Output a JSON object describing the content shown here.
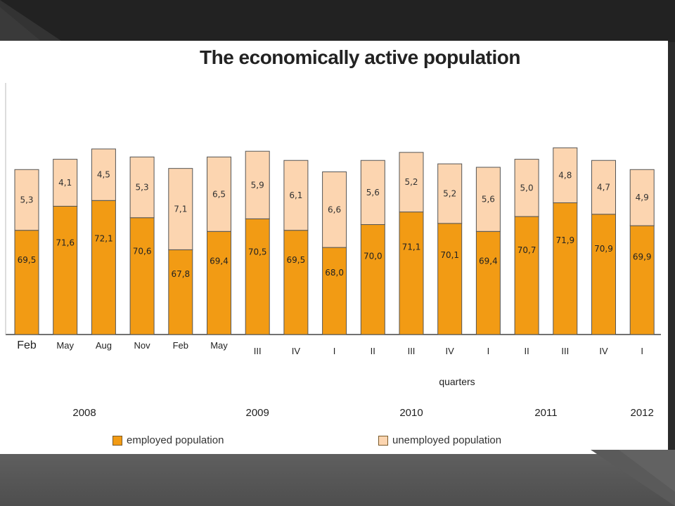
{
  "slide": {
    "title": "The economically active population"
  },
  "colors": {
    "employed": "#f29b14",
    "unemployed": "#fcd5b0",
    "bar_border": "#555555",
    "axis": "#444444"
  },
  "chart_data": {
    "type": "bar",
    "stacked": true,
    "title": "The economically active population",
    "categories": [
      "Feb",
      "May",
      "Aug",
      "Nov",
      "Feb",
      "May",
      "III",
      "IV",
      "I",
      "II",
      "III",
      "IV",
      "I",
      "II",
      "III",
      "IV",
      "I"
    ],
    "series": [
      {
        "name": "employed population",
        "values": [
          69.5,
          71.6,
          72.1,
          70.6,
          67.8,
          69.4,
          70.5,
          69.5,
          68.0,
          70.0,
          71.1,
          70.1,
          69.4,
          70.7,
          71.9,
          70.9,
          69.9
        ],
        "labels": [
          "69,5",
          "71,6",
          "72,1",
          "70,6",
          "67,8",
          "69,4",
          "70,5",
          "69,5",
          "68,0",
          "70,0",
          "71,1",
          "70,1",
          "69,4",
          "70,7",
          "71,9",
          "70,9",
          "69,9"
        ]
      },
      {
        "name": "unemployed population",
        "values": [
          5.3,
          4.1,
          4.5,
          5.3,
          7.1,
          6.5,
          5.9,
          6.1,
          6.6,
          5.6,
          5.2,
          5.2,
          5.6,
          5.0,
          4.8,
          4.7,
          4.9
        ],
        "labels": [
          "5,3",
          "4,1",
          "4,5",
          "5,3",
          "7,1",
          "6,5",
          "5,9",
          "6,1",
          "6,6",
          "5,6",
          "5,2",
          "5,2",
          "5,6",
          "5,0",
          "4,8",
          "4,7",
          "4,9"
        ]
      }
    ],
    "x_axis_note": "quarters",
    "years": [
      {
        "label": "2008",
        "index": 1.5
      },
      {
        "label": "2009",
        "index": 6
      },
      {
        "label": "2010",
        "index": 10
      },
      {
        "label": "2011",
        "index": 13.5
      },
      {
        "label": "2012",
        "index": 16
      }
    ],
    "legend_position": "bottom",
    "grid": false
  }
}
